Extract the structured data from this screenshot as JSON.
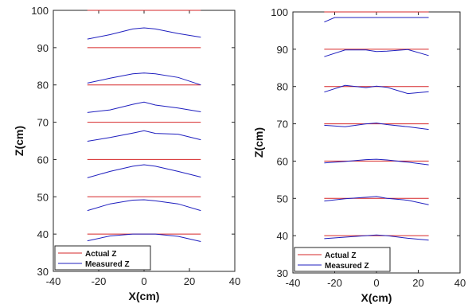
{
  "chart_data": [
    {
      "type": "line",
      "xlabel": "X(cm)",
      "ylabel": "Z(cm)",
      "xlim": [
        -40,
        40
      ],
      "ylim": [
        30,
        100
      ],
      "xticks": [
        "-40",
        "-20",
        "0",
        "20",
        "40"
      ],
      "yticks": [
        "30",
        "40",
        "50",
        "60",
        "70",
        "80",
        "90",
        "100"
      ],
      "grid": false,
      "legend": {
        "placement": "bottom-left",
        "entries": [
          "Actual Z",
          "Measured Z"
        ]
      },
      "colors": {
        "actual": "#d62728",
        "measured": "#1f1fbf"
      },
      "actual": [
        {
          "x": [
            -25,
            25
          ],
          "z": 40
        },
        {
          "x": [
            -25,
            25
          ],
          "z": 50
        },
        {
          "x": [
            -25,
            25
          ],
          "z": 60
        },
        {
          "x": [
            -25,
            25
          ],
          "z": 70
        },
        {
          "x": [
            -25,
            25
          ],
          "z": 80
        },
        {
          "x": [
            -25,
            25
          ],
          "z": 90
        },
        {
          "x": [
            -25,
            25
          ],
          "z": 100
        }
      ],
      "measured": [
        {
          "x": [
            -25,
            -15,
            -5,
            0,
            5,
            15,
            25
          ],
          "z": [
            38.2,
            39.5,
            40.0,
            40.0,
            40.0,
            39.4,
            38.0
          ]
        },
        {
          "x": [
            -25,
            -15,
            -5,
            0,
            5,
            15,
            25
          ],
          "z": [
            46.3,
            48.1,
            49.1,
            49.2,
            48.9,
            48.1,
            46.3
          ]
        },
        {
          "x": [
            -25,
            -15,
            -5,
            0,
            5,
            15,
            25
          ],
          "z": [
            55.1,
            56.8,
            58.2,
            58.6,
            58.2,
            56.8,
            55.3
          ]
        },
        {
          "x": [
            -25,
            -15,
            -5,
            0,
            5,
            15,
            25
          ],
          "z": [
            64.9,
            65.9,
            67.1,
            67.7,
            67.0,
            66.8,
            65.3
          ]
        },
        {
          "x": [
            -25,
            -15,
            -5,
            0,
            5,
            15,
            25
          ],
          "z": [
            72.6,
            73.3,
            74.8,
            75.4,
            74.6,
            73.8,
            72.8
          ]
        },
        {
          "x": [
            -25,
            -15,
            -5,
            0,
            5,
            15,
            25
          ],
          "z": [
            80.5,
            81.8,
            83.0,
            83.2,
            83.0,
            82.0,
            80.0
          ]
        },
        {
          "x": [
            -25,
            -15,
            -5,
            0,
            5,
            15,
            25
          ],
          "z": [
            92.3,
            93.5,
            95.0,
            95.3,
            95.0,
            93.8,
            92.8
          ]
        }
      ]
    },
    {
      "type": "line",
      "xlabel": "X(cm)",
      "ylabel": "Z(cm)",
      "xlim": [
        -40,
        40
      ],
      "ylim": [
        30,
        100
      ],
      "xticks": [
        "-40",
        "-20",
        "0",
        "20",
        "40"
      ],
      "yticks": [
        "30",
        "40",
        "50",
        "60",
        "70",
        "80",
        "90",
        "100"
      ],
      "grid": false,
      "legend": {
        "placement": "bottom-left",
        "entries": [
          "Actual Z",
          "Measured Z"
        ]
      },
      "colors": {
        "actual": "#d62728",
        "measured": "#1f1fbf"
      },
      "actual": [
        {
          "x": [
            -25,
            25
          ],
          "z": 40
        },
        {
          "x": [
            -25,
            25
          ],
          "z": 50
        },
        {
          "x": [
            -25,
            25
          ],
          "z": 60
        },
        {
          "x": [
            -25,
            25
          ],
          "z": 70
        },
        {
          "x": [
            -25,
            25
          ],
          "z": 80
        },
        {
          "x": [
            -25,
            25
          ],
          "z": 90
        },
        {
          "x": [
            -25,
            25
          ],
          "z": 100
        }
      ],
      "measured": [
        {
          "x": [
            -25,
            -15,
            -5,
            0,
            5,
            15,
            25
          ],
          "z": [
            39.2,
            39.6,
            40.0,
            40.2,
            40.0,
            39.3,
            38.8
          ]
        },
        {
          "x": [
            -25,
            -15,
            -5,
            0,
            5,
            15,
            25
          ],
          "z": [
            49.3,
            49.9,
            50.3,
            50.5,
            50.0,
            49.5,
            48.3
          ]
        },
        {
          "x": [
            -25,
            -15,
            -5,
            0,
            5,
            15,
            25
          ],
          "z": [
            59.5,
            59.9,
            60.4,
            60.5,
            60.3,
            59.7,
            59.0
          ]
        },
        {
          "x": [
            -25,
            -15,
            -5,
            0,
            5,
            15,
            25
          ],
          "z": [
            69.6,
            69.2,
            70.0,
            70.2,
            69.8,
            69.2,
            68.5
          ]
        },
        {
          "x": [
            -25,
            -15,
            -5,
            0,
            5,
            15,
            25
          ],
          "z": [
            78.5,
            80.3,
            79.7,
            80.1,
            79.8,
            78.1,
            78.6
          ]
        },
        {
          "x": [
            -25,
            -15,
            -5,
            0,
            5,
            15,
            25
          ],
          "z": [
            88.0,
            89.8,
            89.8,
            89.4,
            89.5,
            89.9,
            88.3
          ]
        },
        {
          "x": [
            -25,
            -20,
            -15,
            0,
            15,
            25
          ],
          "z": [
            97.3,
            98.5,
            98.5,
            98.5,
            98.5,
            98.5
          ]
        }
      ]
    }
  ]
}
